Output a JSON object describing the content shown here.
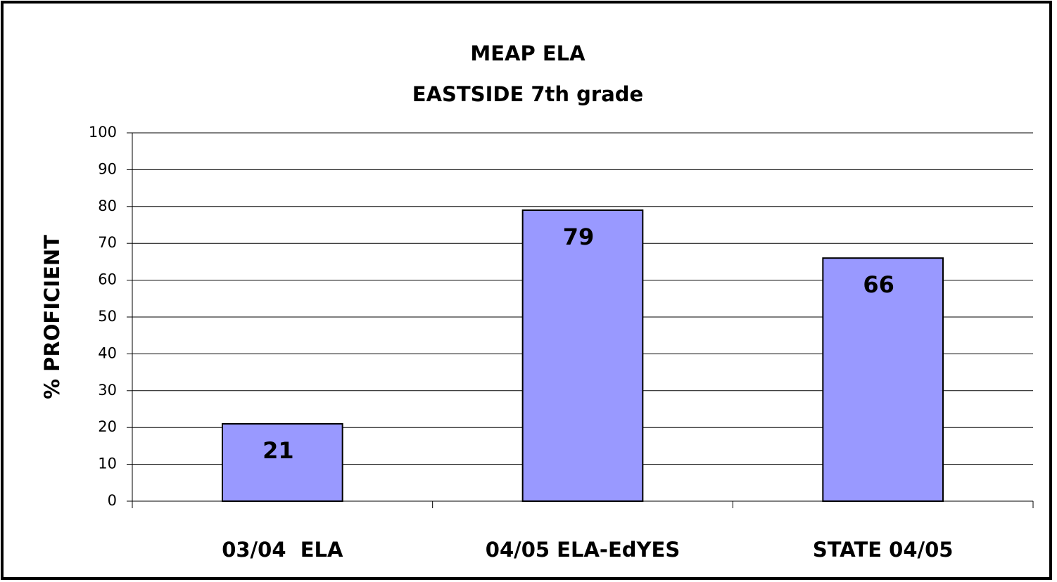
{
  "chart_data": {
    "type": "bar",
    "title": "MEAP ELA",
    "subtitle": "EASTSIDE 7th grade",
    "y_label": "% PROFICIENT",
    "categories": [
      "03/04  ELA",
      "04/05 ELA-EdYES",
      "STATE 04/05"
    ],
    "values": [
      21,
      79,
      66
    ],
    "color": "#9999ff",
    "ylim": [
      0,
      100
    ],
    "yticks": [
      0,
      10,
      20,
      30,
      40,
      50,
      60,
      70,
      80,
      90,
      100
    ],
    "grid": true
  }
}
